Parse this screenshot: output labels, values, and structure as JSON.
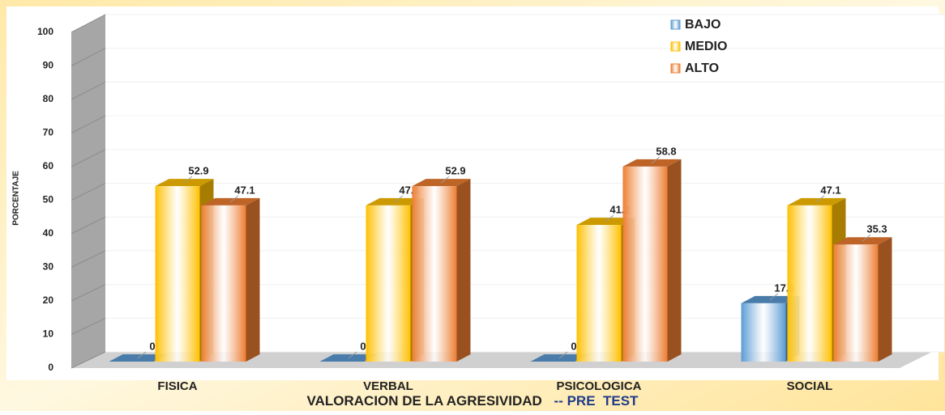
{
  "chart_data": {
    "type": "bar3d",
    "ylabel": "PORCENTAJE",
    "xlabel": "VALORACION DE LA AGRESIVIDAD",
    "xlabel_suffix": "-- PRE  TEST",
    "categories": [
      "FISICA",
      "VERBAL",
      "PSICOLOGICA",
      "SOCIAL"
    ],
    "series": [
      {
        "name": "BAJO",
        "color": "#5b9bd5",
        "values": [
          0,
          0,
          0,
          17.6
        ]
      },
      {
        "name": "MEDIO",
        "color": "#ffc000",
        "values": [
          52.9,
          47.1,
          41.2,
          47.1
        ]
      },
      {
        "name": "ALTO",
        "color": "#ed7d31",
        "values": [
          47.1,
          52.9,
          58.8,
          35.3
        ]
      }
    ],
    "ylim": [
      0,
      100
    ],
    "yticks": [
      0,
      10,
      20,
      30,
      40,
      50,
      60,
      70,
      80,
      90,
      100
    ],
    "grid": true,
    "legend": "top-right"
  }
}
